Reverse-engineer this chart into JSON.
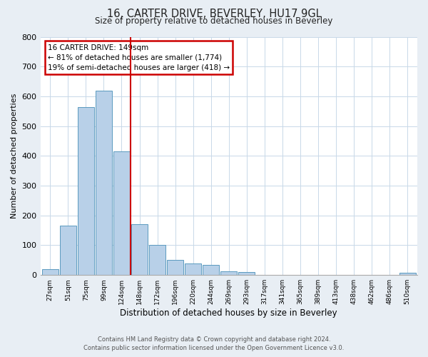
{
  "title": "16, CARTER DRIVE, BEVERLEY, HU17 9GL",
  "subtitle": "Size of property relative to detached houses in Beverley",
  "xlabel": "Distribution of detached houses by size in Beverley",
  "ylabel": "Number of detached properties",
  "bin_labels": [
    "27sqm",
    "51sqm",
    "75sqm",
    "99sqm",
    "124sqm",
    "148sqm",
    "172sqm",
    "196sqm",
    "220sqm",
    "244sqm",
    "269sqm",
    "293sqm",
    "317sqm",
    "341sqm",
    "365sqm",
    "389sqm",
    "413sqm",
    "438sqm",
    "462sqm",
    "486sqm",
    "510sqm"
  ],
  "bar_heights": [
    20,
    165,
    565,
    620,
    415,
    170,
    100,
    50,
    40,
    33,
    13,
    10,
    0,
    0,
    0,
    0,
    0,
    0,
    0,
    0,
    8
  ],
  "bar_color": "#b8d0e8",
  "bar_edge_color": "#5a9abf",
  "marker_line_color": "#cc0000",
  "annotation_title": "16 CARTER DRIVE: 149sqm",
  "annotation_line1": "← 81% of detached houses are smaller (1,774)",
  "annotation_line2": "19% of semi-detached houses are larger (418) →",
  "annotation_box_color": "#cc0000",
  "ylim": [
    0,
    800
  ],
  "yticks": [
    0,
    100,
    200,
    300,
    400,
    500,
    600,
    700,
    800
  ],
  "footer_line1": "Contains HM Land Registry data © Crown copyright and database right 2024.",
  "footer_line2": "Contains public sector information licensed under the Open Government Licence v3.0.",
  "bg_color": "#e8eef4",
  "plot_bg_color": "#ffffff",
  "grid_color": "#c8d8e8"
}
